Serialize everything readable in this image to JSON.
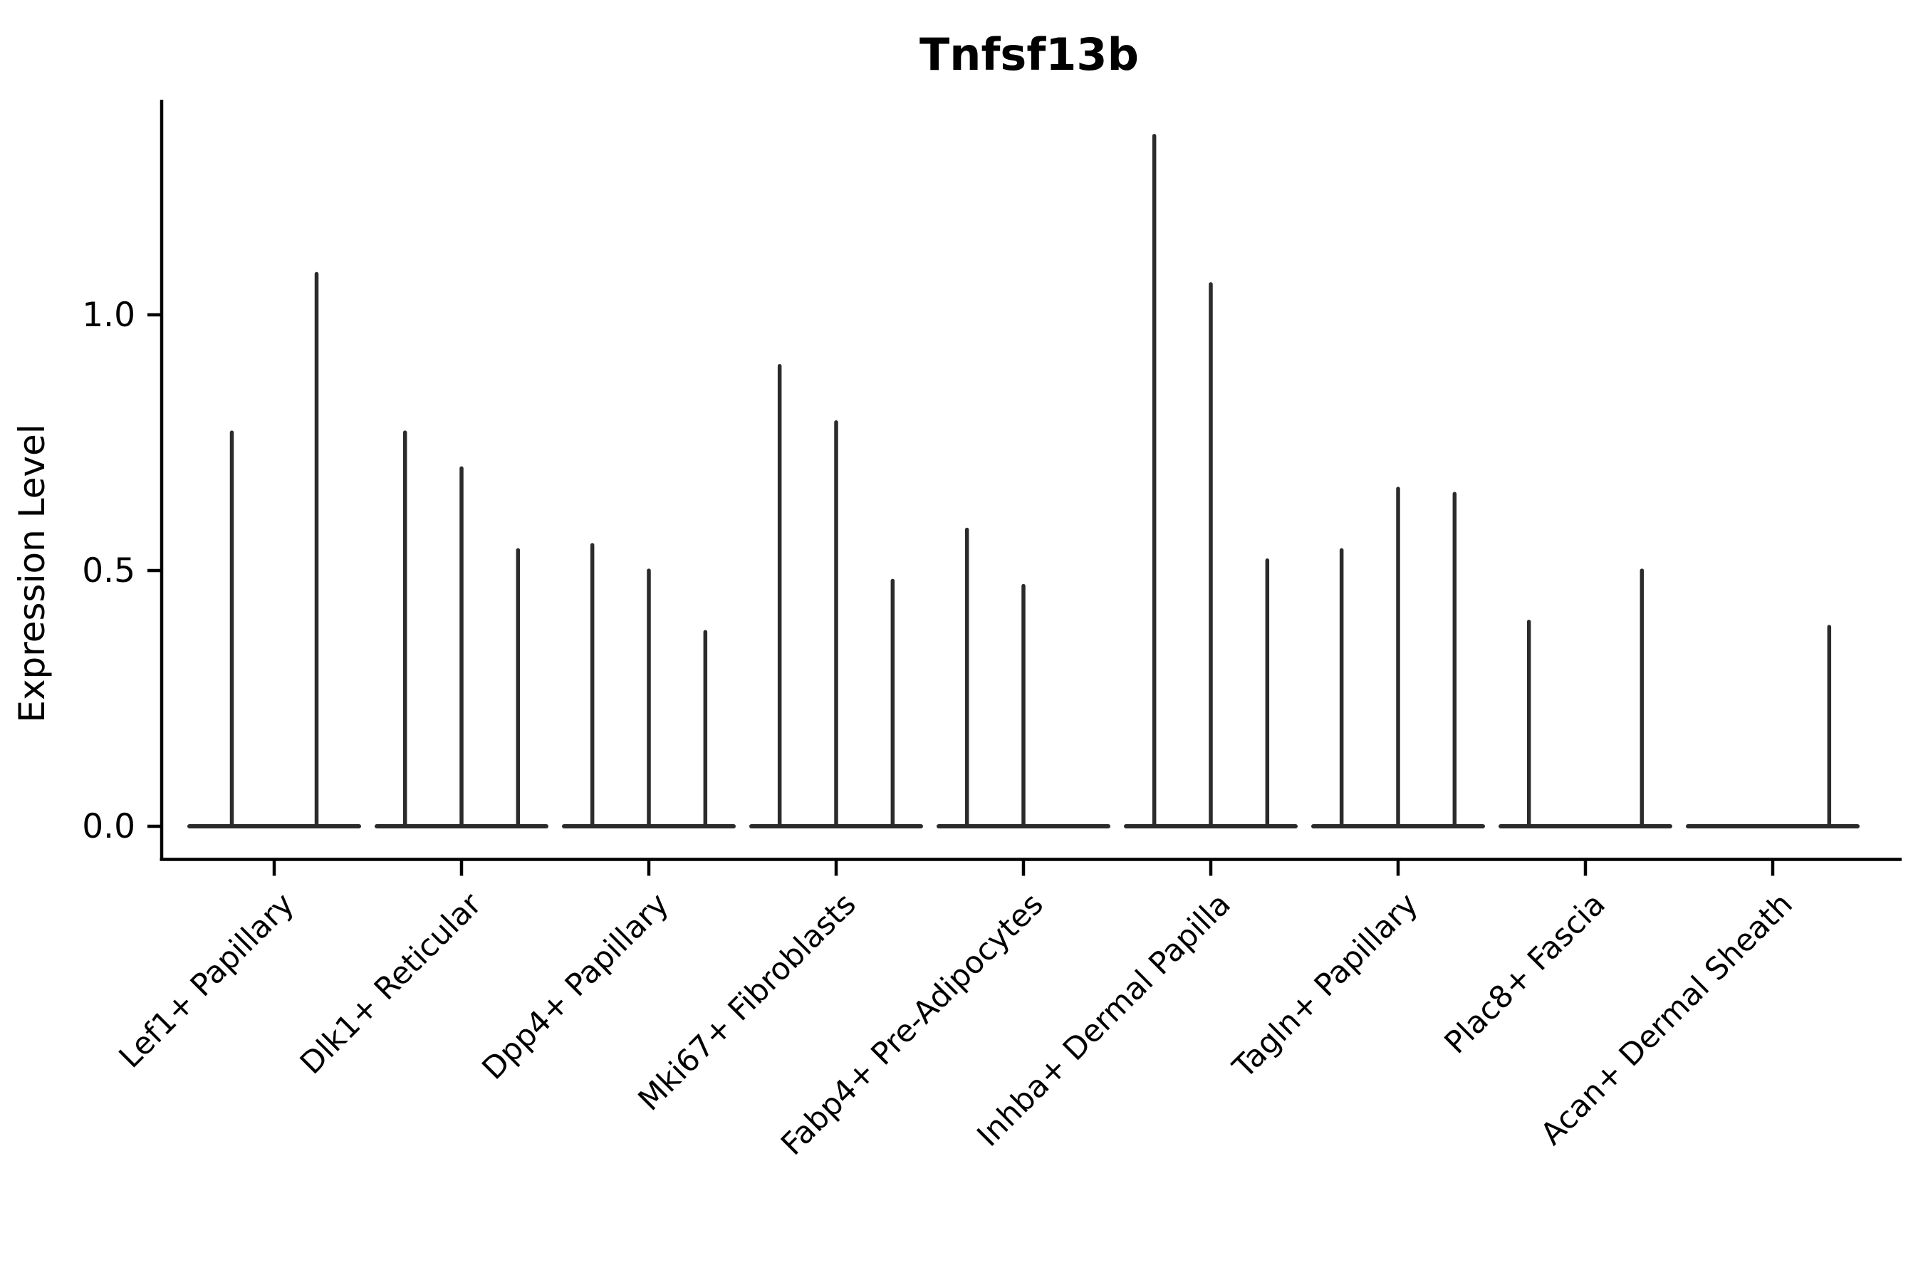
{
  "chart_data": {
    "type": "violin",
    "title": "Tnfsf13b",
    "ylabel": "Expression Level",
    "xlabel": "",
    "yticks": [
      "0.0",
      "0.5",
      "1.0"
    ],
    "ytick_values": [
      0.0,
      0.5,
      1.0
    ],
    "ylim": [
      -0.065,
      1.42
    ],
    "grid": false,
    "legend_position": "none",
    "violin_color": "#2b2b2b",
    "axis_color": "#000000",
    "background_color": "#ffffff",
    "categories": [
      "Lef1+ Papillary",
      "Dlk1+ Reticular",
      "Dpp4+ Papillary",
      "Mki67+ Fibroblasts",
      "Fabp4+ Pre-Adipocytes",
      "Inhba+ Dermal Papilla",
      "Tagln+ Papillary",
      "Plac8+ Fascia",
      "Acan+ Dermal Sheath"
    ],
    "groups": [
      {
        "label": "Lef1+ Papillary",
        "violin_max": [
          0.77,
          1.08
        ]
      },
      {
        "label": "Dlk1+ Reticular",
        "violin_max": [
          0.77,
          0.7,
          0.54
        ]
      },
      {
        "label": "Dpp4+ Papillary",
        "violin_max": [
          0.55,
          0.5,
          0.38
        ]
      },
      {
        "label": "Mki67+ Fibroblasts",
        "violin_max": [
          0.9,
          0.79,
          0.48
        ]
      },
      {
        "label": "Fabp4+ Pre-Adipocytes",
        "violin_max": [
          0.58,
          0.47,
          0.0
        ]
      },
      {
        "label": "Inhba+ Dermal Papilla",
        "violin_max": [
          1.35,
          1.06,
          0.52
        ]
      },
      {
        "label": "Tagln+ Papillary",
        "violin_max": [
          0.54,
          0.66,
          0.65
        ]
      },
      {
        "label": "Plac8+ Fascia",
        "violin_max": [
          0.4,
          0.0,
          0.5
        ]
      },
      {
        "label": "Acan+ Dermal Sheath",
        "violin_max": [
          0.0,
          0.0,
          0.39
        ]
      }
    ]
  }
}
